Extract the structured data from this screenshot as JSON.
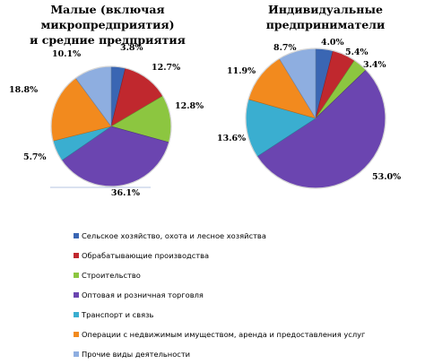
{
  "chart_data": [
    {
      "type": "pie",
      "title_lines": [
        "Малые (включая микропредприятия)",
        "и средние предприятия"
      ],
      "slices": [
        {
          "label": "Сельское хозяйство, охота и лесное хозяйства",
          "value": 3.8,
          "value_label": "3.8%",
          "color": "#3a66b3"
        },
        {
          "label": "Обрабатывающие производства",
          "value": 12.7,
          "value_label": "12.7%",
          "color": "#c0282e"
        },
        {
          "label": "Строительство",
          "value": 12.8,
          "value_label": "12.8%",
          "color": "#8cc640"
        },
        {
          "label": "Оптовая и розничная торговля",
          "value": 36.1,
          "value_label": "36.1%",
          "color": "#6b45b0"
        },
        {
          "label": "Транспорт и связь",
          "value": 5.7,
          "value_label": "5.7%",
          "color": "#3aaed0"
        },
        {
          "label": "Операции с недвижимым имуществом,  аренда и предоставления услуг",
          "value": 18.8,
          "value_label": "18.8%",
          "color": "#f28a1e"
        },
        {
          "label": "Прочие виды деятельности",
          "value": 10.1,
          "value_label": "10.1%",
          "color": "#8eaee0"
        }
      ]
    },
    {
      "type": "pie",
      "title_lines": [
        "Индивидуальные предприниматели"
      ],
      "slices": [
        {
          "label": "Сельское хозяйство, охота и лесное хозяйства",
          "value": 4.0,
          "value_label": "4.0%",
          "color": "#3a66b3"
        },
        {
          "label": "Обрабатывающие производства",
          "value": 5.4,
          "value_label": "5.4%",
          "color": "#c0282e"
        },
        {
          "label": "Строительство",
          "value": 3.4,
          "value_label": "3.4%",
          "color": "#8cc640"
        },
        {
          "label": "Оптовая и розничная торговля",
          "value": 53.0,
          "value_label": "53.0%",
          "color": "#6b45b0"
        },
        {
          "label": "Транспорт и связь",
          "value": 13.6,
          "value_label": "13.6%",
          "color": "#3aaed0"
        },
        {
          "label": "Операции с недвижимым имуществом,  аренда и предоставления услуг",
          "value": 11.9,
          "value_label": "11.9%",
          "color": "#f28a1e"
        },
        {
          "label": "Прочие виды деятельности",
          "value": 8.7,
          "value_label": "8.7%",
          "color": "#8eaee0"
        }
      ]
    }
  ],
  "legend": {
    "placement": "bottom",
    "items": [
      {
        "label": "Сельское хозяйство, охота и лесное хозяйства",
        "color": "#3a66b3"
      },
      {
        "label": "Обрабатывающие производства",
        "color": "#c0282e"
      },
      {
        "label": "Строительство",
        "color": "#8cc640"
      },
      {
        "label": "Оптовая и розничная торговля",
        "color": "#6b45b0"
      },
      {
        "label": "Транспорт и связь",
        "color": "#3aaed0"
      },
      {
        "label": "Операции с недвижимым имуществом,  аренда и предоставления услуг",
        "color": "#f28a1e"
      },
      {
        "label": "Прочие виды деятельности",
        "color": "#8eaee0"
      }
    ]
  }
}
